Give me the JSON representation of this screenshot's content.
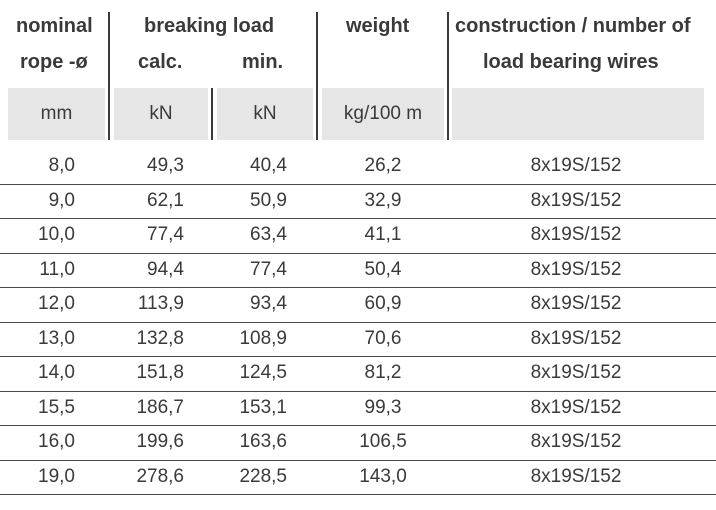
{
  "header": {
    "col_nominal_line1": "nominal",
    "col_nominal_line2": "rope -ø",
    "col_breaking": "breaking load",
    "col_calc": "calc.",
    "col_min": "min.",
    "col_weight": "weight",
    "col_construction_line1": "construction / number of",
    "col_construction_line2": "load bearing wires"
  },
  "units": {
    "nominal": "mm",
    "calc": "kN",
    "min": "kN",
    "weight": "kg/100 m",
    "construction": ""
  },
  "rows": [
    {
      "nominal": "8,0",
      "calc": "49,3",
      "min": "40,4",
      "weight": "26,2",
      "construction": "8x19S/152"
    },
    {
      "nominal": "9,0",
      "calc": "62,1",
      "min": "50,9",
      "weight": "32,9",
      "construction": "8x19S/152"
    },
    {
      "nominal": "10,0",
      "calc": "77,4",
      "min": "63,4",
      "weight": "41,1",
      "construction": "8x19S/152"
    },
    {
      "nominal": "11,0",
      "calc": "94,4",
      "min": "77,4",
      "weight": "50,4",
      "construction": "8x19S/152"
    },
    {
      "nominal": "12,0",
      "calc": "113,9",
      "min": "93,4",
      "weight": "60,9",
      "construction": "8x19S/152"
    },
    {
      "nominal": "13,0",
      "calc": "132,8",
      "min": "108,9",
      "weight": "70,6",
      "construction": "8x19S/152"
    },
    {
      "nominal": "14,0",
      "calc": "151,8",
      "min": "124,5",
      "weight": "81,2",
      "construction": "8x19S/152"
    },
    {
      "nominal": "15,5",
      "calc": "186,7",
      "min": "153,1",
      "weight": "99,3",
      "construction": "8x19S/152"
    },
    {
      "nominal": "16,0",
      "calc": "199,6",
      "min": "163,6",
      "weight": "106,5",
      "construction": "8x19S/152"
    },
    {
      "nominal": "19,0",
      "calc": "278,6",
      "min": "228,5",
      "weight": "143,0",
      "construction": "8x19S/152"
    }
  ]
}
